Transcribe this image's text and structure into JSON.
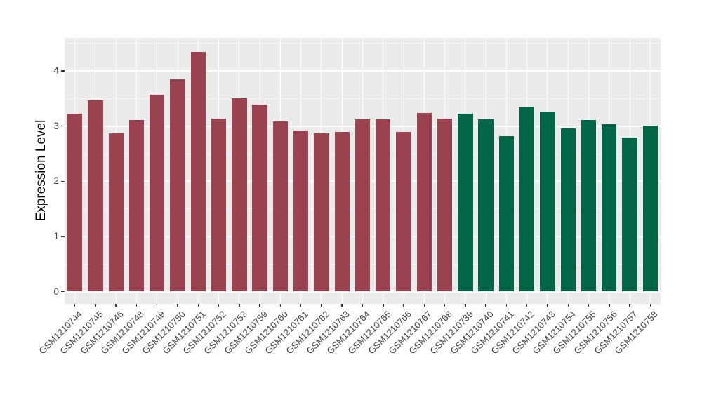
{
  "chart_data": {
    "type": "bar",
    "title": "",
    "xlabel": "",
    "ylabel": "Expression Level",
    "ylim": [
      0,
      4.56
    ],
    "yticks": [
      0,
      1,
      2,
      3,
      4
    ],
    "yticks_minor": [
      0.5,
      1.5,
      2.5,
      3.5,
      4.5
    ],
    "grid": "on",
    "legend_position": "none",
    "categories": [
      "GSM1210744",
      "GSM1210745",
      "GSM1210746",
      "GSM1210748",
      "GSM1210749",
      "GSM1210750",
      "GSM1210751",
      "GSM1210752",
      "GSM1210753",
      "GSM1210759",
      "GSM1210760",
      "GSM1210761",
      "GSM1210762",
      "GSM1210763",
      "GSM1210764",
      "GSM1210765",
      "GSM1210766",
      "GSM1210767",
      "GSM1210768",
      "GSM1210739",
      "GSM1210740",
      "GSM1210741",
      "GSM1210742",
      "GSM1210743",
      "GSM1210754",
      "GSM1210755",
      "GSM1210756",
      "GSM1210757",
      "GSM1210758"
    ],
    "values": [
      3.22,
      3.47,
      2.87,
      3.11,
      3.57,
      3.85,
      4.34,
      3.13,
      3.5,
      3.39,
      3.09,
      2.92,
      2.87,
      2.89,
      3.12,
      3.12,
      2.9,
      3.24,
      3.14,
      3.22,
      3.12,
      2.82,
      3.35,
      3.25,
      2.96,
      3.11,
      3.03,
      2.79,
      3.01
    ],
    "groups": [
      "group1",
      "group1",
      "group1",
      "group1",
      "group1",
      "group1",
      "group1",
      "group1",
      "group1",
      "group1",
      "group1",
      "group1",
      "group1",
      "group1",
      "group1",
      "group1",
      "group1",
      "group1",
      "group1",
      "group2",
      "group2",
      "group2",
      "group2",
      "group2",
      "group2",
      "group2",
      "group2",
      "group2",
      "group2"
    ],
    "colors": {
      "group1": "#9A4250",
      "group2": "#016648",
      "panel_background": "#EBEBEB",
      "gridline": "#FFFFFF",
      "tick": "#333333",
      "axis_text": "#3d3d3d",
      "axis_title": "#000000"
    }
  }
}
